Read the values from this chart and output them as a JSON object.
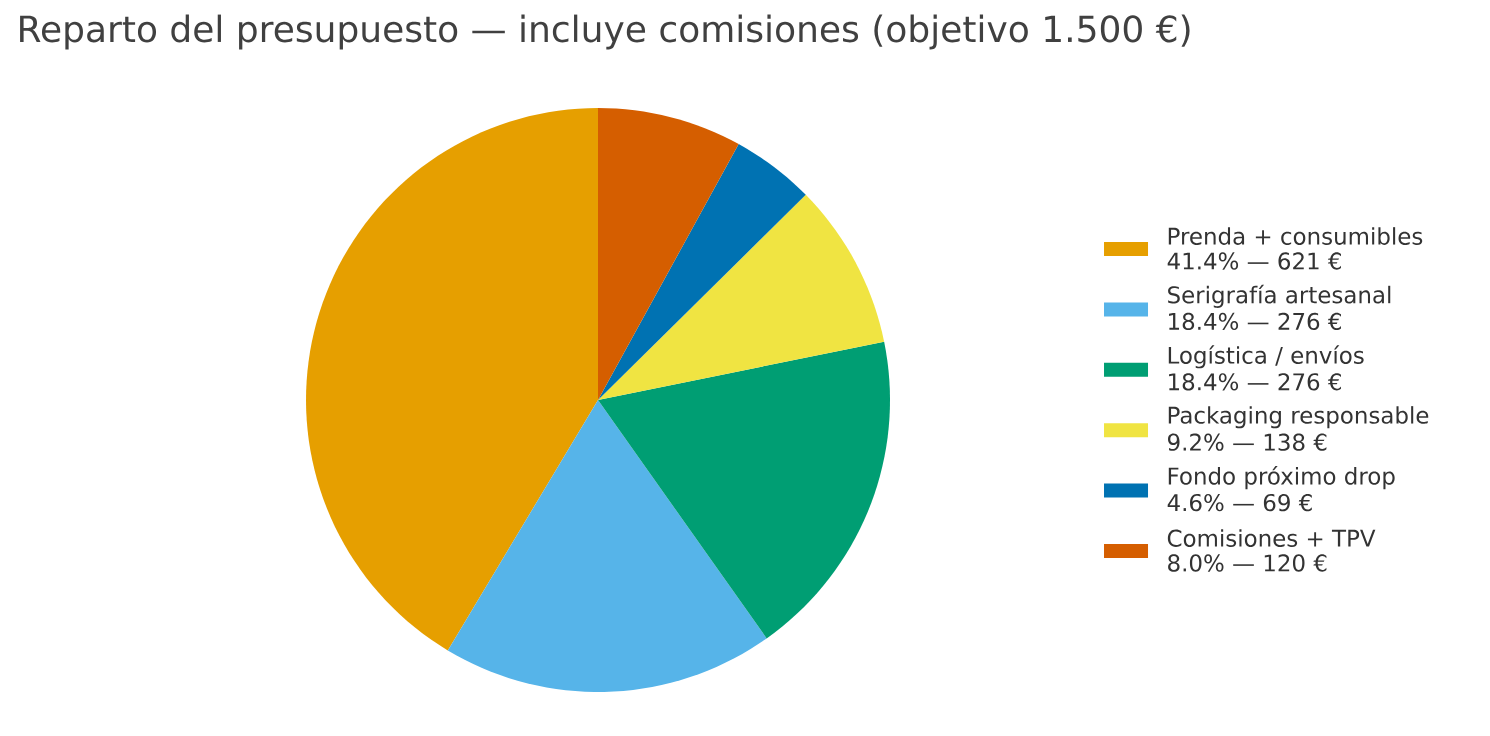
{
  "chart_data": {
    "type": "pie",
    "title": "Reparto del presupuesto — incluye comisiones (objetivo 1.500 €)",
    "categories": [
      "Prenda + consumibles",
      "Serigrafía artesanal",
      "Logística / envíos",
      "Packaging responsable",
      "Fondo próximo drop",
      "Comisiones + TPV"
    ],
    "values": [
      621,
      276,
      276,
      138,
      69,
      120
    ],
    "value_labels": [
      "41.4%  —  621 €",
      "18.4%  —  276 €",
      "18.4%  —  276 €",
      "9.2%  —  138 €",
      "4.6%  —  69 €",
      "8.0%  —  120 €"
    ],
    "colors": [
      "#e69f00",
      "#56b4e9",
      "#009e73",
      "#f0e442",
      "#0072b2",
      "#d55e00"
    ],
    "legend": "right"
  }
}
